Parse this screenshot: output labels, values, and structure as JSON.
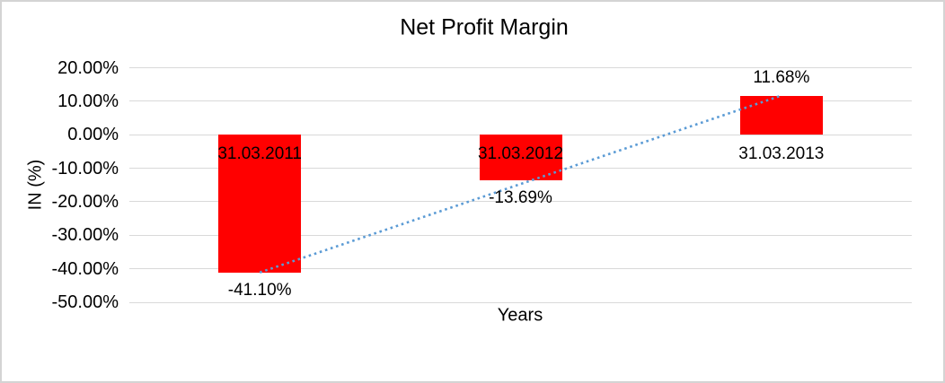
{
  "chart": {
    "border_color": "#d4d4d4",
    "background_color": "#ffffff",
    "text_color": "#000000"
  },
  "chart_data": {
    "type": "bar",
    "title": "Net Profit Margin",
    "xlabel": "Years",
    "ylabel": "IN (%)",
    "categories": [
      "31.03.2011",
      "31.03.2012",
      "31.03.2013"
    ],
    "values": [
      -41.1,
      -13.69,
      11.68
    ],
    "value_labels": [
      "-41.10%",
      "-13.69%",
      "11.68%"
    ],
    "ylim": [
      -50,
      20
    ],
    "ytick_step": 10,
    "ytick_labels": [
      "20.00%",
      "10.00%",
      "0.00%",
      "-10.00%",
      "-20.00%",
      "-30.00%",
      "-40.00%",
      "-50.00%"
    ],
    "grid": true,
    "legend": "none",
    "bar_color": "#ff0000",
    "grid_color": "#d9d9d9",
    "trendline": {
      "type": "linear",
      "style": "dotted",
      "color": "#5b9bd5",
      "from": {
        "category": "31.03.2011",
        "value": -41.1
      },
      "to": {
        "category": "31.03.2013",
        "value": 11.68
      }
    }
  }
}
